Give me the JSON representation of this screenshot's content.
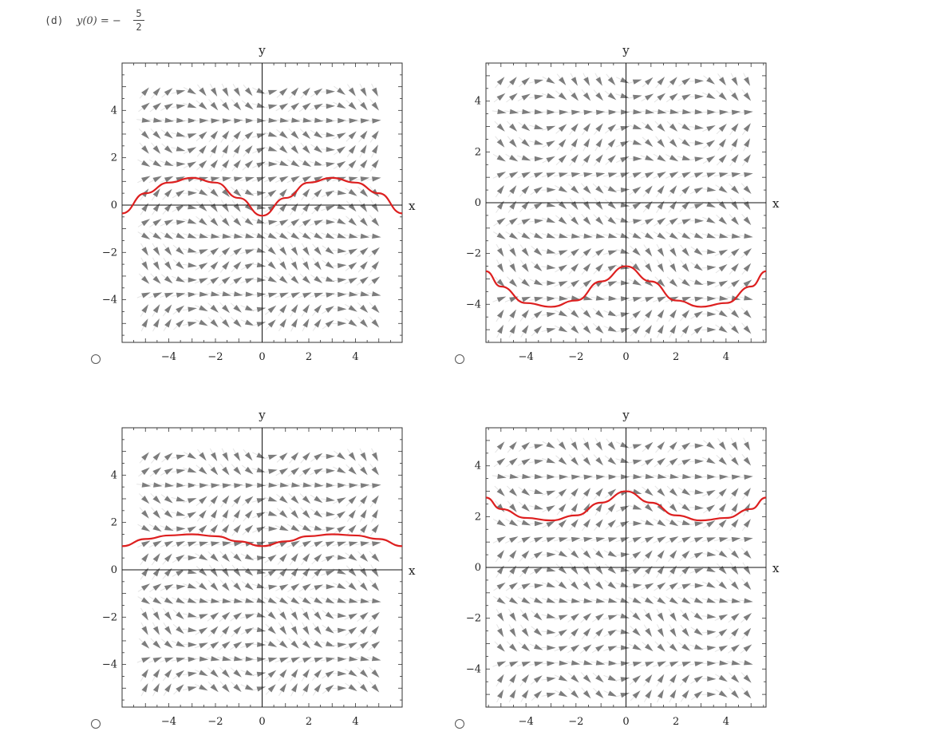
{
  "question": {
    "part_label": "(d)",
    "equation_prefix": "y(0) = −",
    "fraction_numerator": "5",
    "fraction_denominator": "2"
  },
  "options": [
    {
      "id": "a",
      "selected": false,
      "chart_data": {
        "type": "line",
        "xlabel": "x",
        "ylabel": "y",
        "xlim": [
          -6,
          6
        ],
        "ylim": [
          -5.8,
          6.0
        ],
        "xticks": [
          -4,
          -2,
          0,
          2,
          4
        ],
        "xtick_labels": [
          "−4",
          "−2",
          "0",
          "2",
          "4"
        ],
        "yticks": [
          -4,
          -2,
          0,
          2,
          4
        ],
        "ytick_labels": [
          "−4",
          "−2",
          "0",
          "2",
          "4"
        ],
        "direction_field": "slope field arrows, grid x −5..5, y −5..5",
        "curve_color": "#dd1f1f",
        "series": [
          {
            "x": [
              -6,
              -5,
              -4,
              -3,
              -2,
              -1,
              0,
              1,
              2,
              3,
              4,
              5,
              6
            ],
            "y": [
              -0.35,
              0.5,
              0.95,
              1.15,
              0.95,
              0.3,
              -0.45,
              0.3,
              0.95,
              1.15,
              0.95,
              0.5,
              -0.35
            ]
          }
        ]
      }
    },
    {
      "id": "b",
      "selected": false,
      "chart_data": {
        "type": "line",
        "xlabel": "x",
        "ylabel": "y",
        "xlim": [
          -5.6,
          5.6
        ],
        "ylim": [
          -5.5,
          5.5
        ],
        "xticks": [
          -4,
          -2,
          0,
          2,
          4
        ],
        "xtick_labels": [
          "−4",
          "−2",
          "0",
          "2",
          "4"
        ],
        "yticks": [
          -4,
          -2,
          0,
          2,
          4
        ],
        "ytick_labels": [
          "−4",
          "−2",
          "0",
          "2",
          "4"
        ],
        "direction_field": "slope field arrows, grid x −5..5, y −5..5",
        "curve_color": "#dd1f1f",
        "series": [
          {
            "x": [
              -5.6,
              -5,
              -4,
              -3,
              -2,
              -1,
              0,
              1,
              2,
              3,
              4,
              5,
              5.6
            ],
            "y": [
              -2.7,
              -3.3,
              -3.95,
              -4.1,
              -3.85,
              -3.1,
              -2.5,
              -3.1,
              -3.85,
              -4.1,
              -3.95,
              -3.3,
              -2.7
            ]
          }
        ]
      }
    },
    {
      "id": "c",
      "selected": false,
      "chart_data": {
        "type": "line",
        "xlabel": "x",
        "ylabel": "y",
        "xlim": [
          -6,
          6
        ],
        "ylim": [
          -5.8,
          6.0
        ],
        "xticks": [
          -4,
          -2,
          0,
          2,
          4
        ],
        "xtick_labels": [
          "−4",
          "−2",
          "0",
          "2",
          "4"
        ],
        "yticks": [
          -4,
          -2,
          0,
          2,
          4
        ],
        "ytick_labels": [
          "−4",
          "−2",
          "0",
          "2",
          "4"
        ],
        "direction_field": "slope field arrows, grid x −5..5, y −5..5",
        "curve_color": "#dd1f1f",
        "series": [
          {
            "x": [
              -6,
              -5,
              -4,
              -3,
              -2,
              -1,
              0,
              1,
              2,
              3,
              4,
              5,
              6
            ],
            "y": [
              1.0,
              1.3,
              1.45,
              1.5,
              1.42,
              1.2,
              1.0,
              1.2,
              1.42,
              1.5,
              1.45,
              1.3,
              1.0
            ]
          }
        ]
      }
    },
    {
      "id": "d",
      "selected": false,
      "chart_data": {
        "type": "line",
        "xlabel": "x",
        "ylabel": "y",
        "xlim": [
          -5.6,
          5.6
        ],
        "ylim": [
          -5.5,
          5.5
        ],
        "xticks": [
          -4,
          -2,
          0,
          2,
          4
        ],
        "xtick_labels": [
          "−4",
          "−2",
          "0",
          "2",
          "4"
        ],
        "yticks": [
          -4,
          -2,
          0,
          2,
          4
        ],
        "ytick_labels": [
          "−4",
          "−2",
          "0",
          "2",
          "4"
        ],
        "direction_field": "slope field arrows, grid x −5..5, y −5..5",
        "curve_color": "#dd1f1f",
        "series": [
          {
            "x": [
              -5.6,
              -5,
              -4,
              -3,
              -2,
              -1,
              0,
              1,
              2,
              3,
              4,
              5,
              5.6
            ],
            "y": [
              2.75,
              2.3,
              1.95,
              1.85,
              2.05,
              2.55,
              3.0,
              2.55,
              2.05,
              1.85,
              1.95,
              2.3,
              2.75
            ]
          }
        ]
      }
    }
  ]
}
